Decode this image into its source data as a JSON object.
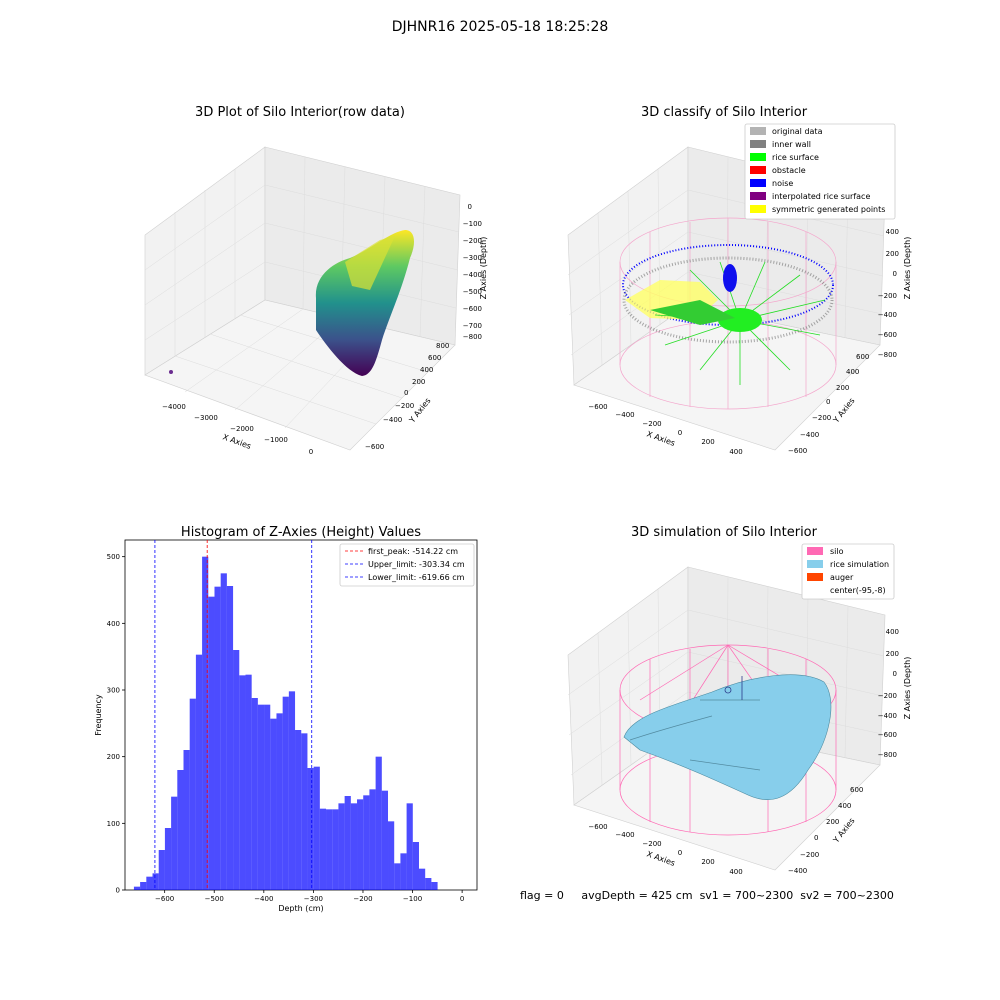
{
  "figure": {
    "title": "DJHNR16 2025-05-18 18:25:28",
    "footer": {
      "flag": "flag = 0",
      "avg_depth": "avgDepth = 425 cm",
      "sv1": "sv1 = 700~2300",
      "sv2": "sv2 = 700~2300"
    }
  },
  "panels": {
    "raw": {
      "title": "3D Plot of Silo Interior(row data)",
      "xlabel": "X Axies",
      "ylabel": "Y Axies",
      "zlabel": "Z Axies (Depth)",
      "xticks": [
        "−4000",
        "−3000",
        "−2000",
        "−1000",
        "0"
      ],
      "yticks": [
        "−600",
        "−400",
        "−200",
        "0",
        "200",
        "400",
        "600",
        "800"
      ],
      "zticks": [
        "0",
        "−100",
        "−200",
        "−300",
        "−400",
        "−500",
        "−600",
        "−700",
        "−800"
      ]
    },
    "classify": {
      "title": "3D classify of Silo Interior",
      "xlabel": "X Axies",
      "ylabel": "Y Axies",
      "zlabel": "Z Axies (Depth)",
      "xticks": [
        "−600",
        "−400",
        "−200",
        "0",
        "200",
        "400"
      ],
      "yticks": [
        "−600",
        "−400",
        "−200",
        "0",
        "200",
        "400",
        "600"
      ],
      "zticks": [
        "400",
        "200",
        "0",
        "−200",
        "−400",
        "−600",
        "−800"
      ],
      "legend": [
        {
          "label": "original data",
          "color": "#b3b3b3"
        },
        {
          "label": "inner wall",
          "color": "#808080"
        },
        {
          "label": "rice surface",
          "color": "#00ff00"
        },
        {
          "label": "obstacle",
          "color": "#ff0000"
        },
        {
          "label": "noise",
          "color": "#0000ff"
        },
        {
          "label": "interpolated rice surface",
          "color": "#800080"
        },
        {
          "label": "symmetric generated points",
          "color": "#ffff00"
        }
      ]
    },
    "simulation": {
      "title": "3D simulation of Silo Interior",
      "xlabel": "X Axies",
      "ylabel": "Y Axies",
      "zlabel": "Z Axies (Depth)",
      "xticks": [
        "−600",
        "−400",
        "−200",
        "0",
        "200",
        "400"
      ],
      "yticks": [
        "−400",
        "−200",
        "0",
        "200",
        "400",
        "600"
      ],
      "zticks": [
        "400",
        "200",
        "0",
        "−200",
        "−400",
        "−600",
        "−800"
      ],
      "legend": [
        {
          "label": "silo",
          "color": "#ff69b4"
        },
        {
          "label": "rice simulation",
          "color": "#87ceeb"
        },
        {
          "label": "auger",
          "color": "#ff4500"
        },
        {
          "label": "center(-95,-8)",
          "color": ""
        }
      ]
    }
  },
  "chart_data": {
    "type": "bar",
    "title": "Histogram of Z-Axies (Height) Values",
    "xlabel": "Depth (cm)",
    "ylabel": "Frequency",
    "xlim": [
      -680,
      30
    ],
    "ylim": [
      0,
      525
    ],
    "xticks": [
      "−600",
      "−500",
      "−400",
      "−300",
      "−200",
      "−100",
      "0"
    ],
    "yticks": [
      "0",
      "100",
      "200",
      "300",
      "400",
      "500"
    ],
    "bar_color": "#0000ff",
    "bin_start": -662,
    "bin_width": 12.5,
    "values": [
      5,
      12,
      20,
      25,
      60,
      93,
      140,
      180,
      210,
      287,
      353,
      500,
      440,
      455,
      475,
      456,
      360,
      322,
      323,
      288,
      278,
      278,
      257,
      265,
      290,
      298,
      240,
      235,
      183,
      185,
      122,
      121,
      121,
      130,
      141,
      130,
      136,
      142,
      151,
      200,
      149,
      103,
      40,
      55,
      130,
      72,
      32,
      18,
      12
    ],
    "vlines": [
      {
        "label": "first_peak: -514.22 cm",
        "x": -514.22,
        "color": "#ff0000"
      },
      {
        "label": "Upper_limit: -303.34 cm",
        "x": -303.34,
        "color": "#0000ff"
      },
      {
        "label": "Lower_limit: -619.66 cm",
        "x": -619.66,
        "color": "#0000ff"
      }
    ],
    "legend_position": "upper right"
  }
}
